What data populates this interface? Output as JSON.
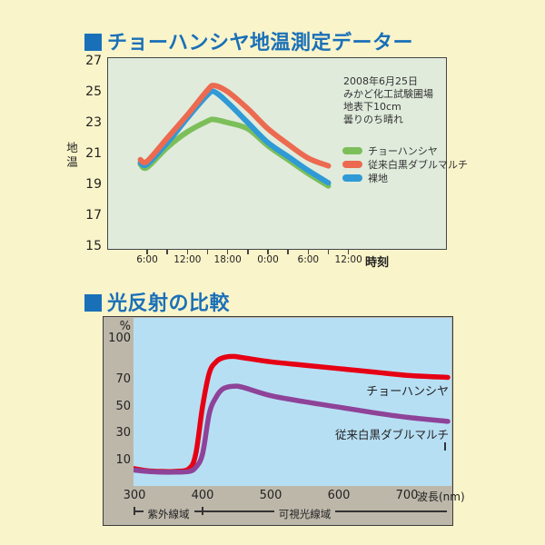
{
  "page": {
    "colors": {
      "bg": "#faf4ca",
      "title": "#1a70b8",
      "c1bg": "#e0ebdc",
      "c2bg": "#b7dff4",
      "c2frame": "#bdb7aa"
    }
  },
  "chart_data": [
    {
      "type": "line",
      "title": "チョーハンシヤ地温測定データー",
      "ylabel": "地温",
      "xlabel": "時刻",
      "yticks": [
        27,
        25,
        23,
        21,
        19,
        17,
        15
      ],
      "ylim": [
        15,
        27
      ],
      "grid": false,
      "legend_position": "inside-right",
      "note_lines": [
        "2008年6月25日",
        "みかど化工試験圃場",
        "地表下10cm",
        "曇りのち晴れ"
      ],
      "xtick_hours": [
        6,
        9,
        12,
        15,
        18,
        21,
        24,
        27,
        30,
        33,
        36
      ],
      "xtick_labels": [
        "6:00",
        "12:00",
        "18:00",
        "0:00",
        "6:00",
        "12:00"
      ],
      "x_hours": [
        5,
        6,
        9,
        12,
        15,
        16,
        18,
        21,
        24,
        27,
        30,
        33
      ],
      "legend": [
        {
          "label": "チョーハンシヤ",
          "color": "#7cbf5a"
        },
        {
          "label": "従来白黒ダブルマルチ",
          "color": "#ec6a50"
        },
        {
          "label": "裸地",
          "color": "#2f9ad6"
        }
      ],
      "series": [
        {
          "name": "チョーハンシヤ",
          "color": "#7cbf5a",
          "values": [
            20.3,
            20.1,
            21.4,
            22.4,
            23.1,
            23.2,
            23.0,
            22.6,
            21.5,
            20.6,
            19.7,
            18.9
          ]
        },
        {
          "name": "裸地",
          "color": "#2f9ad6",
          "values": [
            20.4,
            20.3,
            21.7,
            23.3,
            24.8,
            25.0,
            24.3,
            23.0,
            21.7,
            20.8,
            19.9,
            19.1
          ]
        },
        {
          "name": "従来白黒ダブルマルチ",
          "color": "#ec6a50",
          "values": [
            20.6,
            20.5,
            22.0,
            23.5,
            25.1,
            25.4,
            25.0,
            23.9,
            22.6,
            21.6,
            20.7,
            20.2
          ]
        }
      ]
    },
    {
      "type": "line",
      "title": "光反射の比較",
      "ylabel": "%",
      "xlabel": "波長(nm)",
      "yticks": [
        100,
        70,
        50,
        30,
        10
      ],
      "xticks": [
        300,
        400,
        500,
        600,
        700
      ],
      "xlim": [
        300,
        765
      ],
      "ylim": [
        0,
        115
      ],
      "grid": false,
      "wavelengths_nm": [
        300,
        320,
        340,
        360,
        380,
        390,
        400,
        410,
        420,
        430,
        445,
        460,
        500,
        550,
        600,
        650,
        700,
        760
      ],
      "series": [
        {
          "name": "チョーハンシヤ",
          "color": "#e60014",
          "values": [
            4,
            2.5,
            2,
            2,
            4,
            15,
            50,
            75,
            83,
            86,
            87,
            86,
            83,
            80.5,
            78,
            75.5,
            73,
            71.5
          ]
        },
        {
          "name": "従来白黒ダブルマルチ",
          "color": "#8e4398",
          "values": [
            3,
            2,
            1.5,
            1.5,
            2,
            5,
            15,
            45,
            57,
            63,
            65,
            64,
            58,
            53.5,
            49.5,
            45.5,
            42,
            39
          ]
        }
      ],
      "regions": [
        {
          "label": "紫外線域",
          "from_nm": 300,
          "to_nm": 400
        },
        {
          "label": "可視光線域",
          "from_nm": 400,
          "to_nm": 700
        }
      ]
    }
  ]
}
